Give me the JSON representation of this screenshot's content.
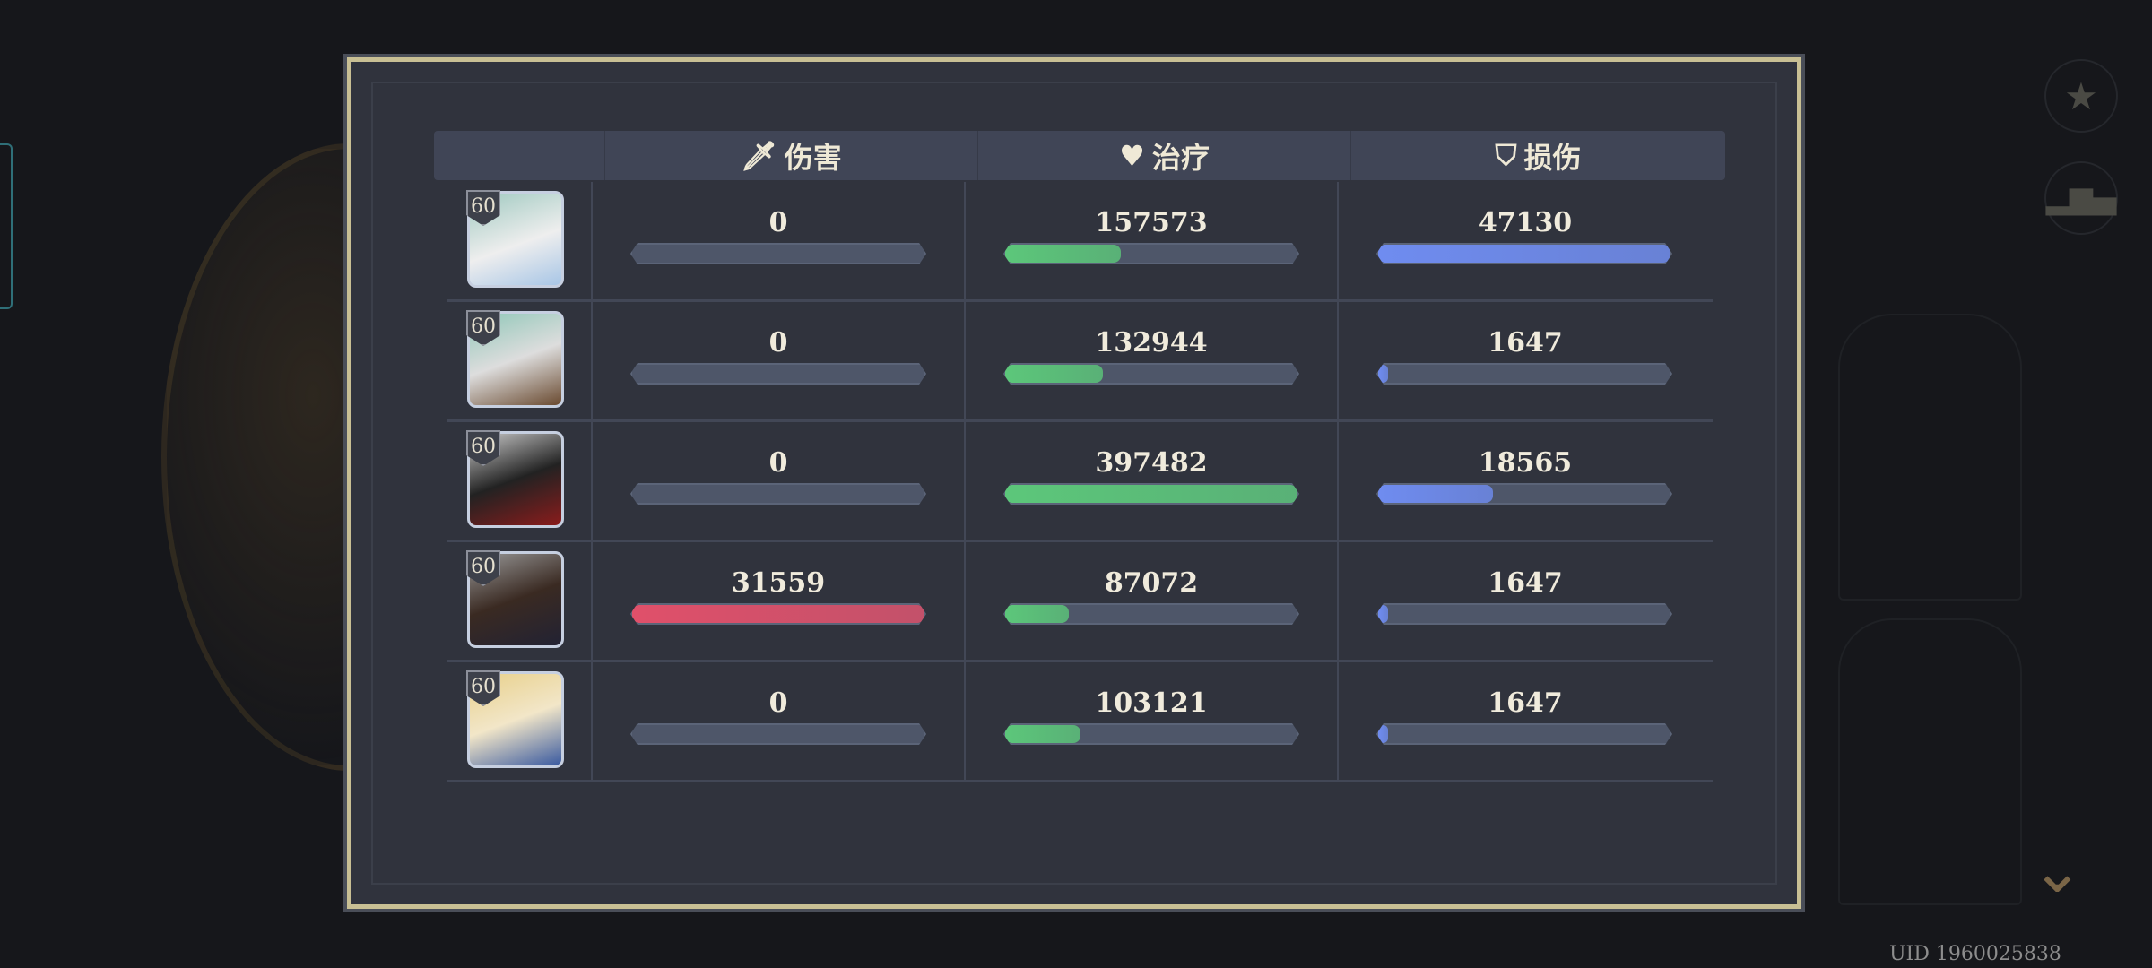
{
  "headers": {
    "damage": "伤害",
    "healing": "治疗",
    "taken": "损伤"
  },
  "icons": {
    "damage": "sword-icon",
    "healing": "heart-icon",
    "taken": "shield-icon"
  },
  "colors": {
    "damage_fill": "#e0506a",
    "healing_fill": "#5cc77a",
    "taken_fill": "#6f8cf0",
    "frame": "#c8bf94"
  },
  "rows": [
    {
      "level": "60",
      "damage": "0",
      "healing": "157573",
      "taken": "47130",
      "damage_frac": 0,
      "healing_frac": 0.396,
      "taken_frac": 1.0
    },
    {
      "level": "60",
      "damage": "0",
      "healing": "132944",
      "taken": "1647",
      "damage_frac": 0,
      "healing_frac": 0.334,
      "taken_frac": 0.035
    },
    {
      "level": "60",
      "damage": "0",
      "healing": "397482",
      "taken": "18565",
      "damage_frac": 0,
      "healing_frac": 1.0,
      "taken_frac": 0.394
    },
    {
      "level": "60",
      "damage": "31559",
      "healing": "87072",
      "taken": "1647",
      "damage_frac": 1.0,
      "healing_frac": 0.219,
      "taken_frac": 0.035
    },
    {
      "level": "60",
      "damage": "0",
      "healing": "103121",
      "taken": "1647",
      "damage_frac": 0,
      "healing_frac": 0.259,
      "taken_frac": 0.035
    }
  ],
  "uid": "UID 1960025838"
}
